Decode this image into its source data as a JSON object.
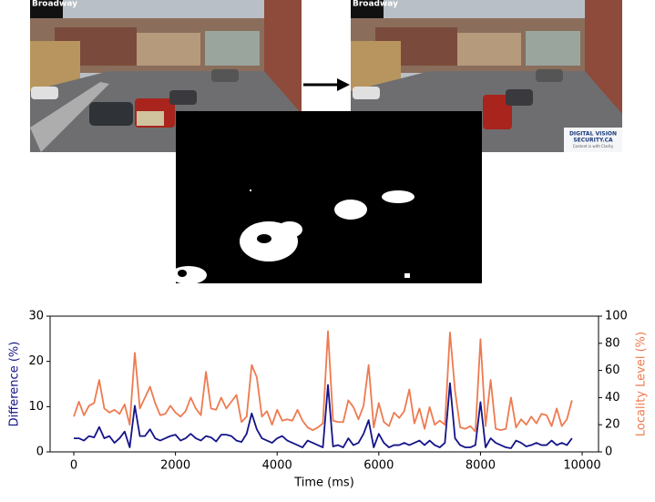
{
  "images": {
    "left_overlay": "Broadway",
    "right_overlay": "Broadway",
    "logo_line1": "DIGITAL VISION",
    "logo_line2": "SECURITY.CA",
    "logo_tagline": "Content is with Clarity"
  },
  "chart_data": {
    "type": "line",
    "x_label": "Time (ms)",
    "y_label": "Difference (%)",
    "y2_label": "Locality Level (%)",
    "x": [
      0,
      100,
      200,
      300,
      400,
      500,
      600,
      700,
      800,
      900,
      1000,
      1100,
      1200,
      1300,
      1400,
      1500,
      1600,
      1700,
      1800,
      1900,
      2000,
      2100,
      2200,
      2300,
      2400,
      2500,
      2600,
      2700,
      2800,
      2900,
      3000,
      3100,
      3200,
      3300,
      3400,
      3500,
      3600,
      3700,
      3800,
      3900,
      4000,
      4100,
      4200,
      4300,
      4400,
      4500,
      4600,
      4700,
      4800,
      4900,
      5000,
      5100,
      5200,
      5300,
      5400,
      5500,
      5600,
      5700,
      5800,
      5900,
      6000,
      6100,
      6200,
      6300,
      6400,
      6500,
      6600,
      6700,
      6800,
      6900,
      7000,
      7100,
      7200,
      7300,
      7400,
      7500,
      7600,
      7700,
      7800,
      7900,
      8000,
      8100,
      8200,
      8300,
      8400,
      8500,
      8600,
      8700,
      8800,
      8900,
      9000,
      9100,
      9200,
      9300,
      9400,
      9500,
      9600,
      9700,
      9800
    ],
    "series": [
      {
        "name": "Difference (%)",
        "color": "#14148a",
        "axis": "y",
        "values": [
          3,
          3,
          2.5,
          3.5,
          3.2,
          5.5,
          3,
          3.5,
          2,
          3,
          4.5,
          1,
          10.2,
          3.5,
          3.5,
          5,
          3,
          2.5,
          3,
          3.5,
          3.8,
          2.5,
          3,
          4,
          3,
          2.5,
          3.5,
          3.2,
          2.3,
          3.8,
          3.8,
          3.5,
          2.5,
          2.2,
          4,
          8.5,
          5,
          3,
          2.5,
          2,
          3,
          3.5,
          2.5,
          2,
          1.5,
          1,
          2.5,
          2,
          1.5,
          1,
          14.8,
          1.2,
          1.5,
          1,
          3,
          1.5,
          2,
          4,
          7,
          1,
          4,
          2,
          1,
          1.5,
          1.5,
          2,
          1.5,
          2,
          2.5,
          1.5,
          2.5,
          1.5,
          1,
          2,
          15.2,
          3,
          1.5,
          1,
          1,
          1.5,
          11,
          1,
          3,
          2,
          1.5,
          1,
          0.8,
          2.5,
          2,
          1.2,
          1.5,
          2,
          1.5,
          1.5,
          2.5,
          1.5,
          2,
          1.5,
          3
        ]
      },
      {
        "name": "Locality Level (%)",
        "color": "#ee7a50",
        "axis": "y2",
        "values": [
          26,
          37,
          27,
          34,
          36,
          53,
          32,
          29,
          31,
          28,
          35,
          20,
          73,
          32,
          40,
          48,
          36,
          27,
          28,
          34,
          29,
          26,
          30,
          40,
          32,
          27,
          59,
          32,
          31,
          40,
          32,
          37,
          42,
          22,
          26,
          64,
          55,
          26,
          30,
          20,
          31,
          23,
          24,
          23,
          31,
          23,
          18,
          16,
          18,
          21,
          89,
          23,
          22,
          22,
          38,
          33,
          24,
          34,
          64,
          18,
          36,
          22,
          19,
          29,
          25,
          30,
          46,
          21,
          32,
          17,
          33,
          20,
          23,
          20,
          88,
          45,
          18,
          17,
          19,
          15,
          83,
          19,
          53,
          17,
          16,
          17,
          40,
          18,
          24,
          20,
          26,
          21,
          28,
          27,
          19,
          32,
          19,
          24,
          38
        ]
      }
    ],
    "xlim": [
      -466,
      10322
    ],
    "xticks": [
      0,
      2000,
      4000,
      6000,
      8000,
      10000
    ],
    "ylim": [
      0,
      30
    ],
    "yticks": [
      0,
      10,
      20,
      30
    ],
    "y2lim": [
      0,
      100
    ],
    "y2ticks": [
      0,
      20,
      40,
      60,
      80,
      100
    ]
  }
}
